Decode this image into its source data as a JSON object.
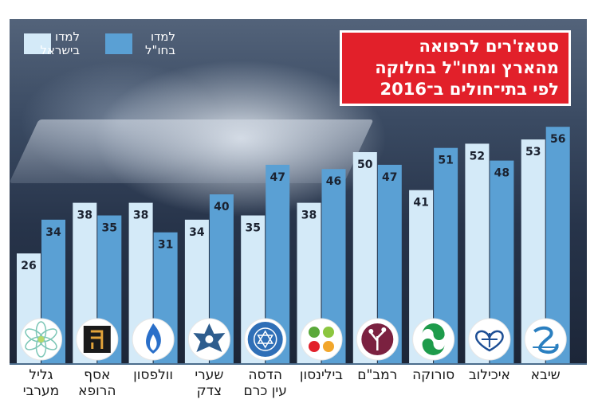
{
  "title": {
    "lines": [
      "סטאז'רים לרפואה",
      "מהארץ ומחו\"ל בחלוקה",
      "לפי בתי־חולים ב־2016"
    ]
  },
  "legend": [
    {
      "label_lines": [
        "למדו",
        "בישראל"
      ],
      "color": "#d4eaf8"
    },
    {
      "label_lines": [
        "למדו",
        "בחו\"ל"
      ],
      "color": "#5aa0d4"
    }
  ],
  "chart_data": {
    "type": "bar",
    "categories": [
      "גליל מערבי",
      "אסף הרופא",
      "וולפסון",
      "שערי צדק",
      "הדסה עין כרם",
      "בילינסון",
      "רמב\"ם",
      "סורוקה",
      "איכילוב",
      "שיבא"
    ],
    "category_lines": [
      [
        "גליל",
        "מערבי"
      ],
      [
        "אסף",
        "הרופא"
      ],
      [
        "וולפסון"
      ],
      [
        "שערי",
        "צדק"
      ],
      [
        "הדסה",
        "עין כרם"
      ],
      [
        "בילינסון"
      ],
      [
        "רמב\"ם"
      ],
      [
        "סורוקה"
      ],
      [
        "איכילוב"
      ],
      [
        "שיבא"
      ]
    ],
    "series": [
      {
        "name": "למדו בישראל",
        "color": "#d4eaf8",
        "values": [
          26,
          38,
          38,
          34,
          35,
          38,
          50,
          41,
          52,
          53
        ]
      },
      {
        "name": "למדו בחו\"ל",
        "color": "#5aa0d4",
        "values": [
          34,
          35,
          31,
          40,
          47,
          46,
          47,
          51,
          48,
          56
        ]
      }
    ],
    "data_labels": true,
    "legend_position": "top-left",
    "grid": false,
    "ylim": [
      0,
      60
    ]
  },
  "logos": [
    {
      "icon": "galil-flower-icon",
      "color": "#7cc6b6"
    },
    {
      "icon": "assaf-harofe-icon",
      "color": "#e3a43a"
    },
    {
      "icon": "wolfson-flame-icon",
      "color": "#2a6fc9"
    },
    {
      "icon": "shaare-zedek-star-icon",
      "color": "#2e5d8e"
    },
    {
      "icon": "hadassah-emblem-icon",
      "color": "#2f6fb7"
    },
    {
      "icon": "beilinson-leaves-icon",
      "color": "#5aa83a"
    },
    {
      "icon": "rambam-tree-icon",
      "color": "#7b2140"
    },
    {
      "icon": "soroka-swirl-icon",
      "color": "#1e9b4b"
    },
    {
      "icon": "ichilov-heart-icon",
      "color": "#1e4f95"
    },
    {
      "icon": "sheba-snake-icon",
      "color": "#2a7fc0"
    }
  ]
}
